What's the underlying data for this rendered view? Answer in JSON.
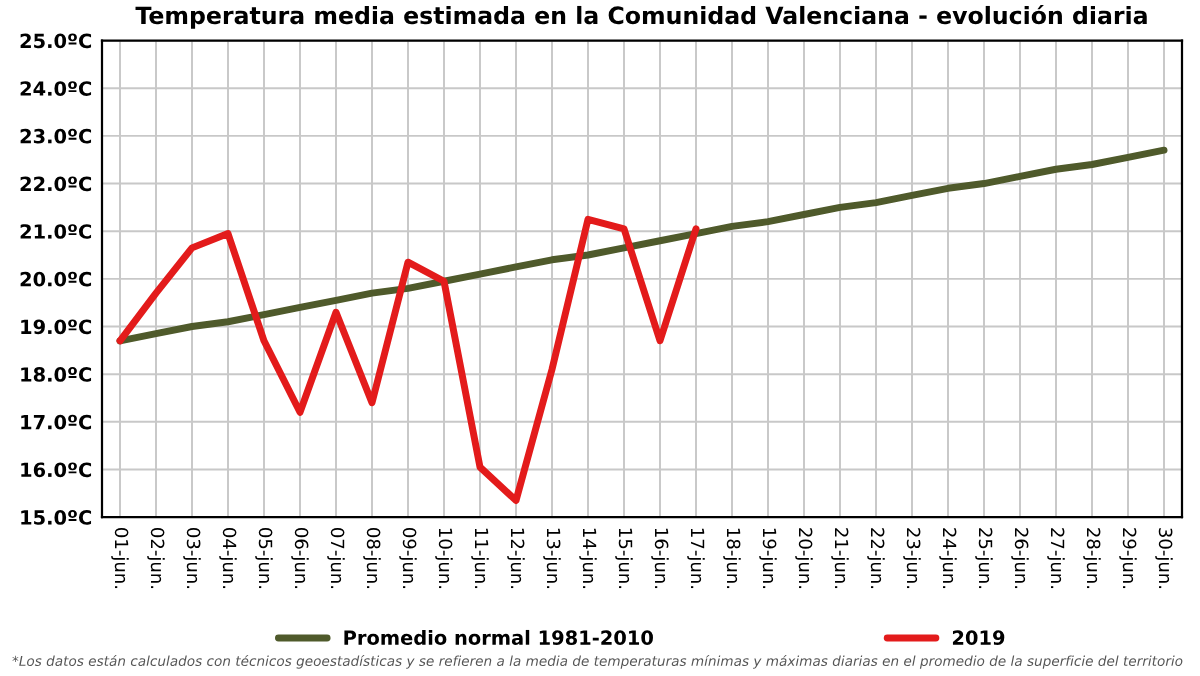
{
  "chart_data": {
    "type": "line",
    "title": "Temperatura media estimada en la Comunidad Valenciana - evolución diaria",
    "categories": [
      "01-jun.",
      "02-jun.",
      "03-jun.",
      "04-jun.",
      "05-jun.",
      "06-jun.",
      "07-jun.",
      "08-jun.",
      "09-jun.",
      "10-jun.",
      "11-jun.",
      "12-jun.",
      "13-jun.",
      "14-jun.",
      "15-jun.",
      "16-jun.",
      "17-jun.",
      "18-jun.",
      "19-jun.",
      "20-jun.",
      "21-jun.",
      "22-jun.",
      "23-jun.",
      "24-jun.",
      "25-jun.",
      "26-jun.",
      "27-jun.",
      "28-jun.",
      "29-jun.",
      "30-jun."
    ],
    "series": [
      {
        "name": "Promedio normal 1981-2010",
        "color": "#4f5a2b",
        "values": [
          18.7,
          18.85,
          19.0,
          19.1,
          19.25,
          19.4,
          19.55,
          19.7,
          19.8,
          19.95,
          20.1,
          20.25,
          20.4,
          20.5,
          20.65,
          20.8,
          20.95,
          21.1,
          21.2,
          21.35,
          21.5,
          21.6,
          21.75,
          21.9,
          22.0,
          22.15,
          22.3,
          22.4,
          22.55,
          22.7
        ]
      },
      {
        "name": "2019",
        "color": "#e31b1b",
        "values": [
          18.7,
          19.7,
          20.65,
          20.95,
          18.7,
          17.2,
          19.3,
          17.4,
          20.35,
          19.95,
          16.05,
          15.35,
          18.1,
          21.25,
          21.05,
          18.7,
          21.05,
          null,
          null,
          null,
          null,
          null,
          null,
          null,
          null,
          null,
          null,
          null,
          null,
          null
        ]
      }
    ],
    "ylim": [
      15,
      25
    ],
    "yticks": [
      {
        "value": 15,
        "label": "15.0ºC"
      },
      {
        "value": 16,
        "label": "16.0ºC"
      },
      {
        "value": 17,
        "label": "17.0ºC"
      },
      {
        "value": 18,
        "label": "18.0ºC"
      },
      {
        "value": 19,
        "label": "19.0ºC"
      },
      {
        "value": 20,
        "label": "20.0ºC"
      },
      {
        "value": 21,
        "label": "21.0ºC"
      },
      {
        "value": 22,
        "label": "22.0ºC"
      },
      {
        "value": 23,
        "label": "23.0ºC"
      },
      {
        "value": 24,
        "label": "24.0ºC"
      },
      {
        "value": 25,
        "label": "25.0ºC"
      }
    ],
    "grid": true,
    "legend": "bottom",
    "marker": "none",
    "line_style": "solid",
    "annotations": [
      "*Los datos están calculados con técnicos geoestadísticas y se refieren a la media de temperaturas mínimas y máximas diarias en el promedio de la superficie del territorio"
    ]
  }
}
